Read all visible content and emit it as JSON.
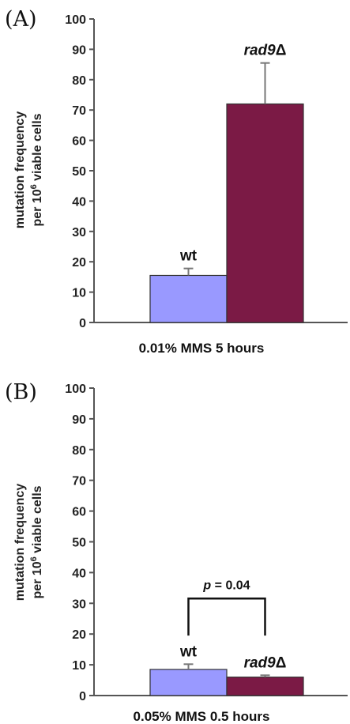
{
  "chart_data": [
    {
      "type": "bar",
      "panel_label": "(A)",
      "xlabel": "0.01% MMS 5 hours",
      "ylabel_line1": "mutation frequency",
      "ylabel_line2_prefix": "per 10",
      "ylabel_line2_sup": "6",
      "ylabel_line2_suffix": " viable cells",
      "ylim": [
        0,
        100
      ],
      "yticks": [
        0,
        10,
        20,
        30,
        40,
        50,
        60,
        70,
        80,
        90,
        100
      ],
      "categories": [
        "wt",
        "rad9Δ"
      ],
      "values": [
        15.5,
        72
      ],
      "errors": [
        2.3,
        13.5
      ],
      "colors": [
        "#9999ff",
        "#7b1a45"
      ],
      "bar_labels": [
        {
          "text": "wt",
          "italic": false
        },
        {
          "text": "rad9",
          "italic": true,
          "suffix": "Δ"
        }
      ]
    },
    {
      "type": "bar",
      "panel_label": "(B)",
      "xlabel": "0.05% MMS 0.5 hours",
      "ylabel_line1": "mutation frequency",
      "ylabel_line2_prefix": "per 10",
      "ylabel_line2_sup": "6",
      "ylabel_line2_suffix": " viable cells",
      "ylim": [
        0,
        100
      ],
      "yticks": [
        0,
        10,
        20,
        30,
        40,
        50,
        60,
        70,
        80,
        90,
        100
      ],
      "categories": [
        "wt",
        "rad9Δ"
      ],
      "values": [
        8.5,
        6
      ],
      "errors": [
        1.7,
        0.6
      ],
      "colors": [
        "#9999ff",
        "#7b1a45"
      ],
      "bar_labels": [
        {
          "text": "wt",
          "italic": false
        },
        {
          "text": "rad9",
          "italic": true,
          "suffix": "Δ"
        }
      ],
      "annotation": {
        "p_symbol": "p",
        "p_text": " = 0.04"
      }
    }
  ]
}
